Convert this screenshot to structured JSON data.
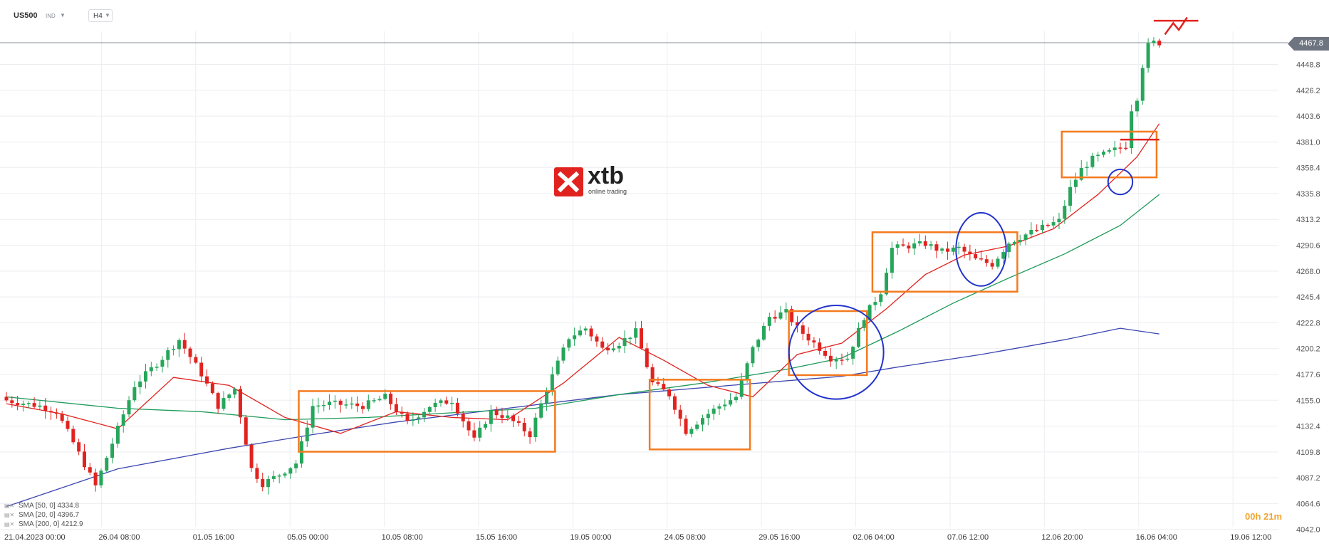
{
  "toolbar": {
    "symbol": "US500",
    "symbol_type": "IND",
    "timeframe": "H4"
  },
  "logo": {
    "name": "xtb",
    "tagline": "online trading"
  },
  "current_price": "4467.8",
  "countdown": "00h 21m",
  "legend": [
    {
      "label": "SMA [50, 0] 4334.8"
    },
    {
      "label": "SMA [20, 0] 4396.7"
    },
    {
      "label": "SMA [200, 0] 4212.9"
    }
  ],
  "colors": {
    "up_candle": "#26a65b",
    "down_candle": "#e1231f",
    "sma20": "#e1231f",
    "sma50": "#1f9a5a",
    "sma200": "#3b45b0",
    "box": "#f47a1f",
    "circle": "#2233cc",
    "price_line": "#8a8f98",
    "annotation": "#e1231f"
  },
  "chart_data": {
    "type": "candlestick",
    "timeframe": "H4",
    "y_ticks": [
      "4467.8",
      "4448.8",
      "4426.2",
      "4403.6",
      "4381.0",
      "4358.4",
      "4335.8",
      "4313.2",
      "4290.6",
      "4268.0",
      "4245.4",
      "4222.8",
      "4200.2",
      "4177.6",
      "4155.0",
      "4132.4",
      "4109.8",
      "4087.2",
      "4064.6",
      "4042.0"
    ],
    "ylim": [
      4037,
      4490
    ],
    "x_ticks": [
      "21.04.2023  00:00",
      "26.04  08:00",
      "01.05  16:00",
      "05.05  00:00",
      "10.05  08:00",
      "15.05  16:00",
      "19.05  00:00",
      "24.05  08:00",
      "29.05  16:00",
      "02.06  04:00",
      "07.06  12:00",
      "12.06  20:00",
      "16.06  04:00",
      "19.06  12:00"
    ],
    "waypoints": [
      [
        0,
        4155
      ],
      [
        6,
        4150
      ],
      [
        9,
        4145
      ],
      [
        12,
        4118
      ],
      [
        16,
        4080
      ],
      [
        20,
        4130
      ],
      [
        23,
        4168
      ],
      [
        28,
        4192
      ],
      [
        31,
        4208
      ],
      [
        35,
        4178
      ],
      [
        38,
        4150
      ],
      [
        41,
        4165
      ],
      [
        44,
        4095
      ],
      [
        46,
        4082
      ],
      [
        49,
        4090
      ],
      [
        52,
        4100
      ],
      [
        55,
        4150
      ],
      [
        58,
        4152
      ],
      [
        64,
        4150
      ],
      [
        68,
        4158
      ],
      [
        72,
        4135
      ],
      [
        76,
        4150
      ],
      [
        80,
        4155
      ],
      [
        84,
        4120
      ],
      [
        87,
        4145
      ],
      [
        90,
        4140
      ],
      [
        94,
        4125
      ],
      [
        97,
        4165
      ],
      [
        101,
        4210
      ],
      [
        104,
        4218
      ],
      [
        107,
        4200
      ],
      [
        110,
        4205
      ],
      [
        113,
        4215
      ],
      [
        116,
        4170
      ],
      [
        119,
        4160
      ],
      [
        122,
        4128
      ],
      [
        125,
        4140
      ],
      [
        128,
        4150
      ],
      [
        131,
        4158
      ],
      [
        134,
        4200
      ],
      [
        137,
        4228
      ],
      [
        140,
        4232
      ],
      [
        142,
        4218
      ],
      [
        145,
        4205
      ],
      [
        148,
        4192
      ],
      [
        151,
        4192
      ],
      [
        154,
        4228
      ],
      [
        157,
        4250
      ],
      [
        159,
        4288
      ],
      [
        162,
        4290
      ],
      [
        165,
        4292
      ],
      [
        168,
        4285
      ],
      [
        171,
        4288
      ],
      [
        174,
        4278
      ],
      [
        177,
        4274
      ],
      [
        180,
        4293
      ],
      [
        183,
        4300
      ],
      [
        186,
        4306
      ],
      [
        189,
        4312
      ],
      [
        191,
        4340
      ],
      [
        193,
        4357
      ],
      [
        195,
        4366
      ],
      [
        198,
        4372
      ],
      [
        200,
        4376
      ],
      [
        201,
        4378
      ],
      [
        202,
        4410
      ],
      [
        203,
        4420
      ],
      [
        204,
        4448
      ],
      [
        205,
        4465
      ],
      [
        206,
        4468
      ],
      [
        207,
        4467.8
      ]
    ],
    "sma": {
      "sma20": [
        [
          0,
          4152
        ],
        [
          10,
          4143
        ],
        [
          20,
          4130
        ],
        [
          30,
          4175
        ],
        [
          40,
          4168
        ],
        [
          50,
          4140
        ],
        [
          60,
          4126
        ],
        [
          70,
          4145
        ],
        [
          80,
          4140
        ],
        [
          90,
          4138
        ],
        [
          100,
          4170
        ],
        [
          110,
          4210
        ],
        [
          118,
          4190
        ],
        [
          126,
          4168
        ],
        [
          134,
          4158
        ],
        [
          142,
          4195
        ],
        [
          150,
          4205
        ],
        [
          158,
          4235
        ],
        [
          165,
          4265
        ],
        [
          172,
          4282
        ],
        [
          180,
          4290
        ],
        [
          188,
          4305
        ],
        [
          196,
          4335
        ],
        [
          203,
          4368
        ],
        [
          207,
          4397
        ]
      ],
      "sma50": [
        [
          0,
          4158
        ],
        [
          20,
          4148
        ],
        [
          35,
          4145
        ],
        [
          50,
          4138
        ],
        [
          65,
          4140
        ],
        [
          80,
          4144
        ],
        [
          95,
          4148
        ],
        [
          110,
          4160
        ],
        [
          125,
          4170
        ],
        [
          140,
          4182
        ],
        [
          150,
          4192
        ],
        [
          160,
          4215
        ],
        [
          170,
          4240
        ],
        [
          180,
          4262
        ],
        [
          190,
          4283
        ],
        [
          200,
          4308
        ],
        [
          207,
          4335
        ]
      ],
      "sma200": [
        [
          0,
          4062
        ],
        [
          20,
          4095
        ],
        [
          40,
          4113
        ],
        [
          55,
          4125
        ],
        [
          70,
          4136
        ],
        [
          90,
          4148
        ],
        [
          110,
          4160
        ],
        [
          130,
          4168
        ],
        [
          150,
          4176
        ],
        [
          160,
          4184
        ],
        [
          175,
          4195
        ],
        [
          190,
          4208
        ],
        [
          200,
          4218
        ],
        [
          207,
          4213
        ]
      ]
    },
    "highlight_boxes": [
      {
        "from_bar": 53,
        "to_bar": 98,
        "top": 4163,
        "bottom": 4110
      },
      {
        "from_bar": 116,
        "to_bar": 133,
        "top": 4173,
        "bottom": 4112
      },
      {
        "from_bar": 141,
        "to_bar": 154,
        "top": 4233,
        "bottom": 4177
      },
      {
        "from_bar": 156,
        "to_bar": 181,
        "top": 4302,
        "bottom": 4250
      },
      {
        "from_bar": 190,
        "to_bar": 206,
        "top": 4390,
        "bottom": 4350
      }
    ],
    "highlight_circles": [
      {
        "center_bar": 149,
        "center_price": 4197,
        "rx_bars": 8.5,
        "ry_price": 41
      },
      {
        "center_bar": 175,
        "center_price": 4287,
        "rx_bars": 4.5,
        "ry_price": 32
      },
      {
        "center_bar": 200,
        "center_price": 4346,
        "rx_bars": 2.2,
        "ry_price": 11
      }
    ],
    "resistance_lines": [
      {
        "from_bar": 200,
        "to_bar": 207,
        "price": 4383
      },
      {
        "from_bar": 206,
        "to_bar": 214,
        "price": 4487
      }
    ],
    "projection": [
      [
        208,
        4475
      ],
      [
        209.5,
        4485
      ],
      [
        210.5,
        4479
      ],
      [
        212,
        4490
      ]
    ]
  }
}
